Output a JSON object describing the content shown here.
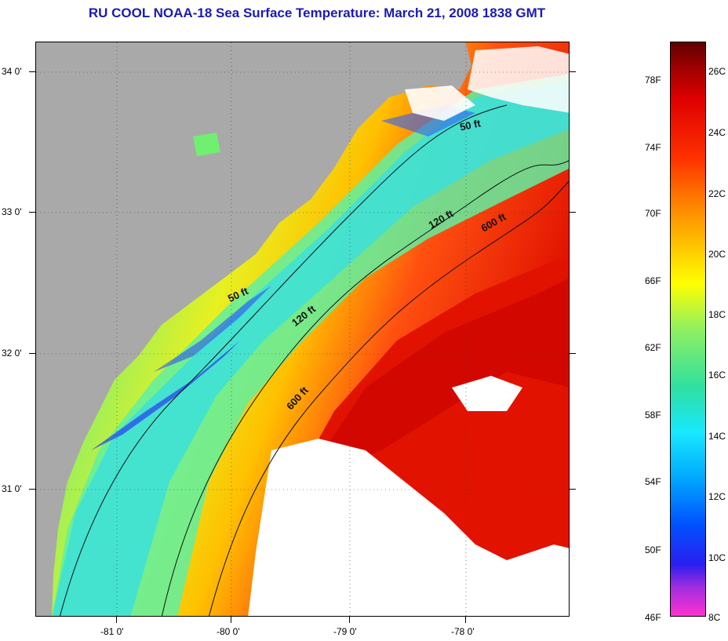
{
  "title": "RU COOL  NOAA-18  Sea Surface Temperature:  March 21, 2008 1838 GMT",
  "lat_labels": [
    "34 0'",
    "33 0'",
    "32 0'",
    "31 0'"
  ],
  "lon_labels": [
    "-81 0'",
    "-80 0'",
    "-79 0'",
    "-78 0'"
  ],
  "contours": {
    "c50_a": "50 ft",
    "c50_b": "50 ft",
    "c120_a": "120 ft",
    "c120_b": "120 ft",
    "c600_a": "600 ft",
    "c600_b": "600 ft"
  },
  "colorbar": {
    "f_labels": [
      "78F",
      "74F",
      "70F",
      "66F",
      "62F",
      "58F",
      "54F",
      "50F",
      "46F"
    ],
    "c_labels": [
      "26C",
      "24C",
      "22C",
      "20C",
      "18C",
      "16C",
      "14C",
      "12C",
      "10C",
      "8C"
    ]
  },
  "colors": {
    "land": "#a9a9a9",
    "cloud": "#ffffff",
    "cold": "#2a3cf0",
    "warm": "#e01000",
    "title": "#1b1bb0"
  }
}
